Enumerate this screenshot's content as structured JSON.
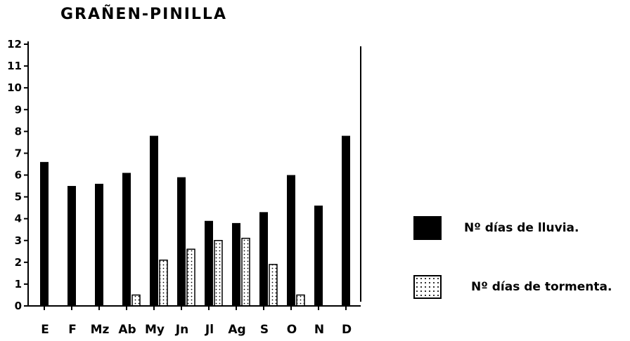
{
  "chart_data": {
    "type": "bar",
    "title": "GRAÑEN-PINILLA",
    "xlabel": "",
    "ylabel": "",
    "ylim": [
      0,
      12
    ],
    "yticks": [
      0,
      1,
      2,
      3,
      4,
      5,
      6,
      7,
      8,
      9,
      10,
      11,
      12
    ],
    "grid": false,
    "legend_position": "right",
    "categories": [
      "E",
      "F",
      "Mz",
      "Ab",
      "My",
      "Jn",
      "Jl",
      "Ag",
      "S",
      "O",
      "N",
      "D"
    ],
    "series": [
      {
        "name": "Nº días de lluvia.",
        "color": "#000000",
        "pattern": "solid",
        "values": [
          6.6,
          5.5,
          5.6,
          6.1,
          7.8,
          5.9,
          3.9,
          3.8,
          4.3,
          6.0,
          4.6,
          7.8
        ]
      },
      {
        "name": "Nº días de tormenta.",
        "color": "#ffffff",
        "pattern": "dotted",
        "values": [
          0,
          0,
          0,
          0.5,
          2.1,
          2.6,
          3.0,
          3.1,
          1.9,
          0.5,
          0,
          0
        ]
      }
    ]
  }
}
